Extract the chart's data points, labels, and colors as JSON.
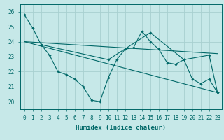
{
  "background_color": "#c6e8e8",
  "grid_color": "#a8d0d0",
  "line_color": "#006868",
  "xlabel": "Humidex (Indice chaleur)",
  "ylim": [
    19.5,
    26.5
  ],
  "xlim": [
    -0.5,
    23.5
  ],
  "yticks": [
    20,
    21,
    22,
    23,
    24,
    25,
    26
  ],
  "xticks": [
    0,
    1,
    2,
    3,
    4,
    5,
    6,
    7,
    8,
    9,
    10,
    11,
    12,
    13,
    14,
    15,
    16,
    17,
    18,
    19,
    20,
    21,
    22,
    23
  ],
  "lines": [
    {
      "x": [
        0,
        1,
        2,
        3,
        4,
        5,
        6,
        7,
        8,
        9,
        10,
        11,
        12,
        13,
        14,
        15,
        16,
        17,
        18,
        19,
        20,
        21,
        22,
        23
      ],
      "y": [
        25.8,
        24.9,
        23.8,
        23.1,
        22.0,
        21.8,
        21.5,
        21.0,
        20.1,
        20.0,
        21.6,
        22.8,
        23.5,
        23.6,
        24.7,
        24.0,
        23.5,
        22.6,
        22.5,
        22.8,
        21.5,
        21.2,
        21.5,
        20.6
      ],
      "markers": true
    },
    {
      "x": [
        2,
        10,
        15,
        19,
        22,
        23
      ],
      "y": [
        23.8,
        22.8,
        24.6,
        22.8,
        23.1,
        20.6
      ],
      "markers": true
    },
    {
      "x": [
        0,
        2,
        23
      ],
      "y": [
        24.85,
        23.8,
        23.2
      ],
      "markers": false
    },
    {
      "x": [
        0,
        2,
        10,
        15,
        19,
        22,
        23
      ],
      "y": [
        24.85,
        23.8,
        22.8,
        24.6,
        22.8,
        23.1,
        20.6
      ],
      "markers": false
    }
  ],
  "trend_lines": [
    {
      "x0": 0,
      "y0": 24.0,
      "x1": 23,
      "y1": 23.2
    },
    {
      "x0": 0,
      "y0": 24.0,
      "x1": 23,
      "y1": 20.6
    }
  ]
}
